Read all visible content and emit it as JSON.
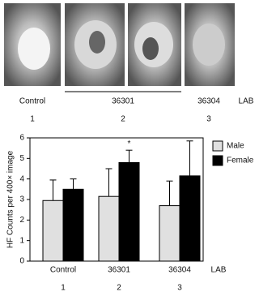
{
  "photos": {
    "labels": [
      "Control",
      "36301",
      "36304",
      "LAB"
    ],
    "numbers": [
      "1",
      "2",
      "3"
    ]
  },
  "chart_data": {
    "type": "bar",
    "ylabel": "HF Counts per 400× image",
    "categories": [
      "Control",
      "36301",
      "36304"
    ],
    "category_axis_label": "LAB",
    "group_numbers": [
      "1",
      "2",
      "3"
    ],
    "series": [
      {
        "name": "Male",
        "color": "#e0e0e0",
        "values": [
          2.95,
          3.15,
          2.7
        ],
        "errors": [
          1.0,
          1.35,
          1.2
        ]
      },
      {
        "name": "Female",
        "color": "#000000",
        "values": [
          3.5,
          4.8,
          4.15
        ],
        "errors": [
          0.5,
          0.6,
          1.7
        ]
      }
    ],
    "annotation": "*",
    "ylim": [
      0,
      6
    ],
    "yticks": [
      0,
      1,
      2,
      3,
      4,
      5,
      6
    ],
    "legend": "right"
  }
}
